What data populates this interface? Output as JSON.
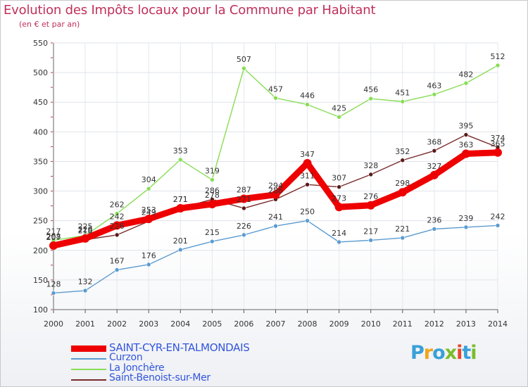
{
  "header": {
    "title": "Evolution des Impôts locaux pour la Commune par Habitant",
    "subtitle": "(en € et par an)"
  },
  "logo": {
    "text": "Proxiti",
    "colors": [
      "#3aa0d8",
      "#f2a51b",
      "#3aa0d8",
      "#7bbd2a",
      "#e8452c",
      "#3aa0d8",
      "#7bbd2a"
    ]
  },
  "chart_data": {
    "type": "line",
    "x": [
      "2000",
      "2001",
      "2002",
      "2003",
      "2004",
      "2005",
      "2006",
      "2007",
      "2008",
      "2009",
      "2010",
      "2011",
      "2012",
      "2013",
      "2014"
    ],
    "ylim": [
      100,
      550
    ],
    "yticks": [
      "100",
      "150",
      "200",
      "250",
      "300",
      "350",
      "400",
      "450",
      "500",
      "550"
    ],
    "grid": true,
    "legend_position": "bottom-left",
    "series": [
      {
        "name": "SAINT-CYR-EN-TALMONDAIS",
        "color": "#ee0000",
        "values": [
          208,
          220,
          242,
          253,
          271,
          278,
          287,
          294,
          347,
          273,
          276,
          298,
          327,
          363,
          365
        ],
        "labels": [
          "208",
          "220",
          "242",
          "253",
          "271",
          "278",
          "287",
          "294",
          "347",
          "273",
          "276",
          "298",
          "327",
          "363",
          "365"
        ]
      },
      {
        "name": "Curzon",
        "color": "#5b9bd0",
        "values": [
          128,
          132,
          167,
          176,
          201,
          215,
          226,
          241,
          250,
          214,
          217,
          221,
          236,
          239,
          242
        ],
        "labels": [
          "128",
          "132",
          "167",
          "176",
          "201",
          "215",
          "226",
          "241",
          "250",
          "214",
          "217",
          "221",
          "236",
          "239",
          "242"
        ]
      },
      {
        "name": "La Jonchère",
        "color": "#88dd55",
        "values": [
          217,
          225,
          262,
          304,
          353,
          319,
          507,
          457,
          446,
          425,
          456,
          451,
          463,
          482,
          512
        ],
        "labels": [
          "217",
          "225",
          "262",
          "304",
          "353",
          "319",
          "507",
          "457",
          "446",
          "425",
          "456",
          "451",
          "463",
          "482",
          "512"
        ]
      },
      {
        "name": "Saint-Benoist-sur-Mer",
        "color": "#7a2a2a",
        "values": [
          207,
          218,
          226,
          249,
          271,
          286,
          271,
          286,
          311,
          307,
          328,
          352,
          368,
          395,
          374
        ],
        "labels": [
          "207",
          "218",
          "226",
          "249",
          "271",
          "286",
          "271",
          "286",
          "311",
          "307",
          "328",
          "352",
          "368",
          "395",
          "374"
        ]
      }
    ]
  }
}
